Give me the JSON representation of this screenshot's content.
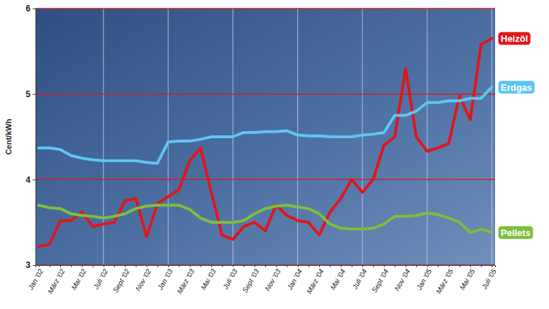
{
  "chart_data": {
    "type": "line",
    "y_label": "Cent/kWh",
    "categories": [
      "Jan '02",
      null,
      "März '02",
      null,
      "Mai '02",
      null,
      "Juli '02",
      null,
      "Sept '02",
      null,
      "Nov '02",
      null,
      "Jan '03",
      null,
      "März '03",
      null,
      "Mai '03",
      null,
      "Juli '03",
      null,
      "Sept '03",
      null,
      "Nov '03",
      null,
      "Jan '04",
      null,
      "März '04",
      null,
      "Mai '04",
      null,
      "Juli '04",
      null,
      "Sept '04",
      null,
      "Nov '04",
      null,
      "Jan '05",
      null,
      "März '05",
      null,
      "Mai '05",
      null,
      "Juli '05"
    ],
    "series": [
      {
        "name": "Heizöl",
        "color": "#e1161c",
        "values": [
          3.22,
          3.24,
          3.52,
          3.52,
          3.62,
          3.45,
          3.48,
          3.5,
          3.75,
          3.78,
          3.33,
          3.72,
          3.8,
          3.88,
          4.22,
          4.37,
          3.85,
          3.35,
          3.3,
          3.45,
          3.5,
          3.4,
          3.7,
          3.58,
          3.52,
          3.5,
          3.35,
          3.62,
          3.78,
          4.0,
          3.85,
          4.0,
          4.4,
          4.5,
          5.3,
          4.5,
          4.33,
          4.37,
          4.42,
          4.98,
          4.7,
          5.58,
          5.65
        ]
      },
      {
        "name": "Erdgas",
        "color": "#5ec6f2",
        "values": [
          4.37,
          4.37,
          4.35,
          4.28,
          4.25,
          4.23,
          4.22,
          4.22,
          4.22,
          4.22,
          4.2,
          4.19,
          4.44,
          4.45,
          4.45,
          4.47,
          4.5,
          4.5,
          4.5,
          4.55,
          4.55,
          4.56,
          4.56,
          4.57,
          4.52,
          4.51,
          4.51,
          4.5,
          4.5,
          4.5,
          4.52,
          4.53,
          4.55,
          4.75,
          4.75,
          4.8,
          4.9,
          4.9,
          4.92,
          4.92,
          4.95,
          4.95,
          5.08
        ]
      },
      {
        "name": "Pellets",
        "color": "#7dbf3c",
        "values": [
          3.7,
          3.67,
          3.66,
          3.6,
          3.58,
          3.57,
          3.55,
          3.57,
          3.6,
          3.66,
          3.69,
          3.7,
          3.7,
          3.7,
          3.65,
          3.55,
          3.5,
          3.5,
          3.5,
          3.52,
          3.6,
          3.66,
          3.69,
          3.7,
          3.68,
          3.66,
          3.6,
          3.48,
          3.43,
          3.42,
          3.42,
          3.43,
          3.48,
          3.57,
          3.57,
          3.58,
          3.61,
          3.59,
          3.55,
          3.5,
          3.38,
          3.42,
          3.38
        ]
      }
    ],
    "ylim": [
      3,
      6
    ],
    "yticks": [
      3,
      4,
      5,
      6
    ],
    "grid": true
  }
}
